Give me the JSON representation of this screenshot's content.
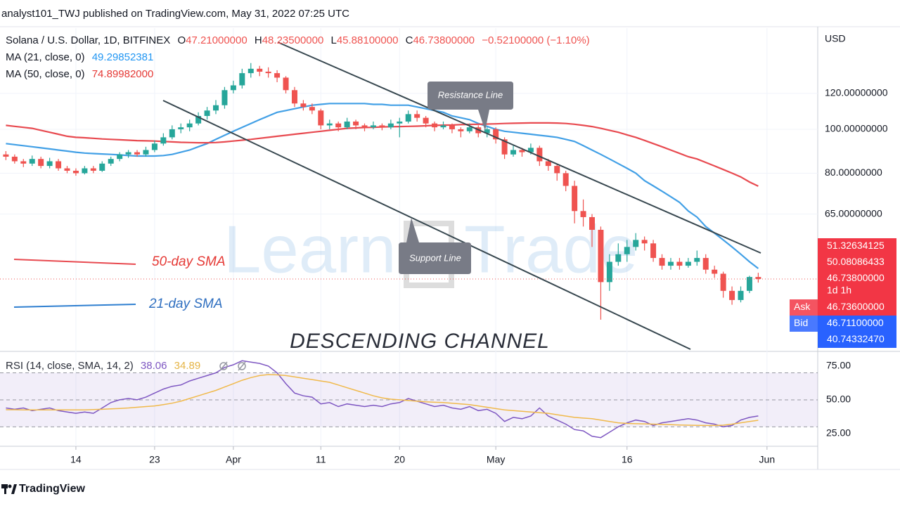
{
  "header": {
    "publisher": "analyst101_TWJ published on TradingView.com, May 31, 2022 07:25 UTC",
    "footer": "TradingView"
  },
  "chart_data": {
    "type": "candlestick",
    "info": {
      "symbol": "Solana / U.S. Dollar, 1D, BITFINEX",
      "ohlc": [
        [
          "O",
          "47.21000000"
        ],
        [
          "H",
          "48.23500000"
        ],
        [
          "L",
          "45.88100000"
        ],
        [
          "C",
          "46.73800000"
        ]
      ],
      "change": "−0.52100000 (−1.10%)"
    },
    "currency": "USD",
    "log_scale": true,
    "grid": true,
    "up_color": "#26a69a",
    "down_color": "#ef5350",
    "xlim": [
      -0.675,
      92.8
    ],
    "xticks": [
      {
        "value": 8,
        "label": "14"
      },
      {
        "value": 17,
        "label": "23"
      },
      {
        "value": 26,
        "label": "Apr"
      },
      {
        "value": 36,
        "label": "11"
      },
      {
        "value": 45,
        "label": "20"
      },
      {
        "value": 56,
        "label": "May"
      },
      {
        "value": 71,
        "label": "16"
      },
      {
        "value": 87,
        "label": "Jun"
      }
    ],
    "ylim": [
      32.35,
      167.2
    ],
    "yticks": [
      {
        "value": 120,
        "label": "120.00000000"
      },
      {
        "value": 100,
        "label": "100.00000000"
      },
      {
        "value": 80,
        "label": "80.00000000"
      },
      {
        "value": 65,
        "label": "65.00000000"
      }
    ],
    "ohlc": [
      [
        88,
        89.5,
        85.5,
        87
      ],
      [
        87,
        88,
        84,
        85
      ],
      [
        85,
        86,
        82.5,
        84
      ],
      [
        84,
        87.5,
        83,
        86
      ],
      [
        86,
        87,
        82,
        83
      ],
      [
        83,
        86.5,
        82,
        85
      ],
      [
        85,
        86,
        81,
        82
      ],
      [
        82,
        83,
        80,
        81
      ],
      [
        81,
        82,
        79,
        80
      ],
      [
        80,
        83,
        79.5,
        82
      ],
      [
        82,
        83,
        80,
        81
      ],
      [
        81,
        85,
        80.5,
        84
      ],
      [
        84,
        87,
        83,
        86
      ],
      [
        86,
        89,
        85,
        88
      ],
      [
        88,
        90,
        86.5,
        89
      ],
      [
        89,
        90,
        87,
        88
      ],
      [
        88,
        91.5,
        87,
        90
      ],
      [
        90,
        94.5,
        89,
        93
      ],
      [
        93,
        98,
        92,
        96
      ],
      [
        96,
        102,
        95,
        100
      ],
      [
        100,
        103,
        98,
        101
      ],
      [
        101,
        105,
        99,
        103
      ],
      [
        103,
        109,
        102,
        107
      ],
      [
        107,
        112,
        105,
        110
      ],
      [
        110,
        116,
        108,
        113
      ],
      [
        113,
        124,
        111,
        122
      ],
      [
        122,
        128,
        120,
        125
      ],
      [
        125,
        136,
        123,
        133
      ],
      [
        133,
        140,
        130,
        136
      ],
      [
        136,
        138,
        131,
        134
      ],
      [
        134,
        137,
        130,
        133
      ],
      [
        133,
        135,
        127,
        130
      ],
      [
        130,
        131,
        120,
        122
      ],
      [
        122,
        124,
        112,
        114
      ],
      [
        114,
        116,
        110,
        112
      ],
      [
        112,
        114,
        108,
        110
      ],
      [
        110,
        111,
        100,
        102
      ],
      [
        102,
        105,
        100,
        103
      ],
      [
        103,
        104,
        99,
        101
      ],
      [
        101,
        106,
        100,
        104
      ],
      [
        104,
        105,
        100,
        102
      ],
      [
        102,
        103,
        99,
        101
      ],
      [
        101,
        104,
        100,
        102
      ],
      [
        102,
        103,
        99.5,
        101
      ],
      [
        101,
        105,
        100,
        103
      ],
      [
        103,
        106,
        96,
        104
      ],
      [
        104,
        110,
        103,
        108
      ],
      [
        108,
        110,
        104,
        106
      ],
      [
        106,
        107,
        101,
        103
      ],
      [
        103,
        104,
        99,
        101
      ],
      [
        101,
        104,
        100,
        102
      ],
      [
        102,
        103,
        98,
        100
      ],
      [
        100,
        101,
        96,
        99
      ],
      [
        99,
        103,
        98,
        101
      ],
      [
        101,
        102,
        96,
        98
      ],
      [
        98,
        101,
        96,
        100
      ],
      [
        100,
        101,
        93,
        95
      ],
      [
        95,
        96,
        86,
        88
      ],
      [
        88,
        92,
        87,
        90
      ],
      [
        90,
        91,
        87,
        89
      ],
      [
        89,
        93,
        88,
        91
      ],
      [
        91,
        92,
        83,
        85
      ],
      [
        85,
        86,
        81,
        83
      ],
      [
        83,
        84,
        77,
        80
      ],
      [
        80,
        81,
        73,
        75
      ],
      [
        75,
        77,
        62,
        66
      ],
      [
        66,
        70,
        61,
        64
      ],
      [
        64,
        65,
        55,
        60
      ],
      [
        60,
        61,
        38,
        46
      ],
      [
        46,
        53,
        44,
        51
      ],
      [
        51,
        56,
        50,
        53
      ],
      [
        53,
        57,
        51,
        55
      ],
      [
        55,
        59,
        54,
        57
      ],
      [
        57,
        58,
        54,
        56
      ],
      [
        56,
        57,
        51,
        52
      ],
      [
        52,
        53,
        49,
        50
      ],
      [
        50,
        52,
        49,
        51
      ],
      [
        51,
        52,
        49,
        50
      ],
      [
        50,
        52,
        49.5,
        51
      ],
      [
        51,
        54,
        50,
        52
      ],
      [
        52,
        53,
        48,
        49
      ],
      [
        49,
        50,
        47,
        48
      ],
      [
        48,
        48.5,
        42.5,
        44
      ],
      [
        44,
        45,
        41,
        42
      ],
      [
        42,
        45,
        41.5,
        44
      ],
      [
        44,
        47.5,
        43.5,
        47.21
      ],
      [
        47.21,
        48.235,
        45.881,
        46.738
      ]
    ],
    "series": [
      {
        "name": "MA (21, close, 0)",
        "color": "#42a0e6",
        "values": [
          93,
          92.5,
          92,
          91.5,
          91,
          90.5,
          90,
          89.5,
          89,
          88.6,
          88.4,
          88.2,
          88,
          87.8,
          87.5,
          87.3,
          87.3,
          87.3,
          87.5,
          88,
          89,
          90,
          91.5,
          93,
          95,
          97,
          99,
          101,
          103,
          105,
          107,
          109,
          110,
          111,
          112,
          113,
          113.5,
          114,
          114,
          114,
          114,
          114,
          113.5,
          113.5,
          113,
          113,
          113,
          112,
          111,
          110,
          109,
          107,
          106,
          105,
          103,
          101.5,
          100,
          99,
          98.5,
          98,
          97.5,
          97,
          96.5,
          96,
          95,
          94,
          92,
          90,
          88,
          86,
          84,
          82,
          80,
          77,
          75,
          73,
          71,
          69,
          66,
          64,
          61,
          59,
          57,
          55,
          53,
          51,
          49.29852381
        ]
      },
      {
        "name": "MA (50, close, 0)",
        "color": "#e84a50",
        "last_label": "74.89982000",
        "values": [
          102,
          101.5,
          101,
          100.5,
          99.5,
          98.5,
          97.5,
          96.5,
          96,
          95.8,
          95.5,
          95.2,
          95,
          94.8,
          94.6,
          94.4,
          94.3,
          94.2,
          94,
          93.8,
          93.6,
          93.5,
          93.4,
          93.4,
          93.5,
          93.8,
          94.2,
          94.6,
          95,
          95.5,
          96,
          96.5,
          97,
          97.5,
          98,
          98.5,
          99,
          99.5,
          100,
          100.5,
          100.7,
          100.9,
          101,
          101.2,
          101.3,
          101.4,
          101.5,
          101.6,
          101.8,
          102,
          102.1,
          102.2,
          102.4,
          102.5,
          102.6,
          102.7,
          102.8,
          103,
          103.1,
          103.2,
          103.3,
          103.3,
          103.3,
          103.2,
          103,
          102.6,
          102,
          101.4,
          100.5,
          99.5,
          98.5,
          97.2,
          96,
          94.5,
          93,
          91.5,
          90,
          88.5,
          87,
          86,
          84.5,
          83,
          81.5,
          80,
          78.5,
          76.5,
          74.89982
        ]
      }
    ],
    "price_tags": [
      {
        "value": 51.32634125,
        "label": "51.32634125",
        "color": "#f23645"
      },
      {
        "value": 50.08086433,
        "label": "50.08086433",
        "color": "#f23645"
      },
      {
        "value": 46.738,
        "label": "46.73800000",
        "color": "#f23645",
        "note": "1d 1h"
      },
      {
        "value": 46.736,
        "label": "46.73600000",
        "color": "#f23645",
        "side": "Ask"
      },
      {
        "value": 46.711,
        "label": "46.71100000",
        "color": "#2962ff",
        "side": "Bid"
      },
      {
        "value": 40.7433247,
        "label": "40.74332470",
        "color": "#2962ff"
      }
    ],
    "annotations": {
      "resistance": "Resistance Line",
      "support": "Support Line",
      "sma50": "50-day SMA",
      "sma21": "21-day SMA",
      "channel": "DESCENDING CHANNEL",
      "watermark": [
        "Learn",
        "Trade"
      ]
    },
    "rsi": {
      "title": "RSI (14, close, SMA, 14, 2)",
      "ylim": [
        15.6,
        85.9
      ],
      "yticks": [
        {
          "value": 75,
          "label": "75.00"
        },
        {
          "value": 50,
          "label": "50.00"
        },
        {
          "value": 25,
          "label": "25.00"
        }
      ],
      "band": [
        30,
        70
      ],
      "lines": [
        70,
        50,
        30
      ],
      "series": [
        {
          "color": "#7e57c2",
          "values": [
            44,
            43,
            44,
            42,
            43,
            44,
            42,
            41,
            40,
            41,
            40,
            44,
            48,
            50,
            51,
            50,
            52,
            55,
            58,
            60,
            61,
            64,
            66,
            68,
            70,
            74,
            76,
            79,
            78,
            77,
            75,
            70,
            62,
            55,
            53,
            52,
            47,
            48,
            45,
            47,
            46,
            45,
            46,
            45,
            47,
            48,
            51,
            49,
            47,
            45,
            46,
            44,
            43,
            45,
            42,
            43,
            40,
            34,
            37,
            36,
            38,
            44,
            38,
            35,
            32,
            28,
            27,
            23,
            22,
            26,
            30,
            33,
            35,
            34,
            31,
            33,
            34,
            35,
            36,
            35,
            33,
            32,
            30,
            31,
            35,
            37,
            38.06
          ]
        },
        {
          "color": "#f0b94a",
          "values": [
            42.7,
            42.7,
            42.6,
            42.6,
            42.5,
            42.5,
            42.5,
            42.5,
            42.5,
            42.6,
            42.8,
            43,
            43.3,
            43.6,
            44,
            44.5,
            45,
            45.5,
            46.5,
            47.5,
            49,
            51,
            53,
            55,
            57,
            59.5,
            62,
            64.5,
            66.5,
            68,
            68.7,
            68.5,
            68,
            67,
            66,
            65,
            64,
            63,
            61,
            59,
            57,
            55,
            53,
            51.5,
            50.5,
            50,
            49.5,
            49,
            48.5,
            48.2,
            48,
            47.5,
            47,
            46.5,
            45.5,
            44.5,
            43.5,
            42.5,
            42,
            41.5,
            41,
            40.5,
            40,
            39,
            38,
            37,
            36.5,
            36,
            35,
            34,
            33,
            32.5,
            32.3,
            32.2,
            32,
            31.8,
            31.6,
            31.4,
            31.2,
            31.1,
            31,
            31,
            31.2,
            32,
            33,
            34,
            34.89
          ]
        }
      ]
    }
  }
}
